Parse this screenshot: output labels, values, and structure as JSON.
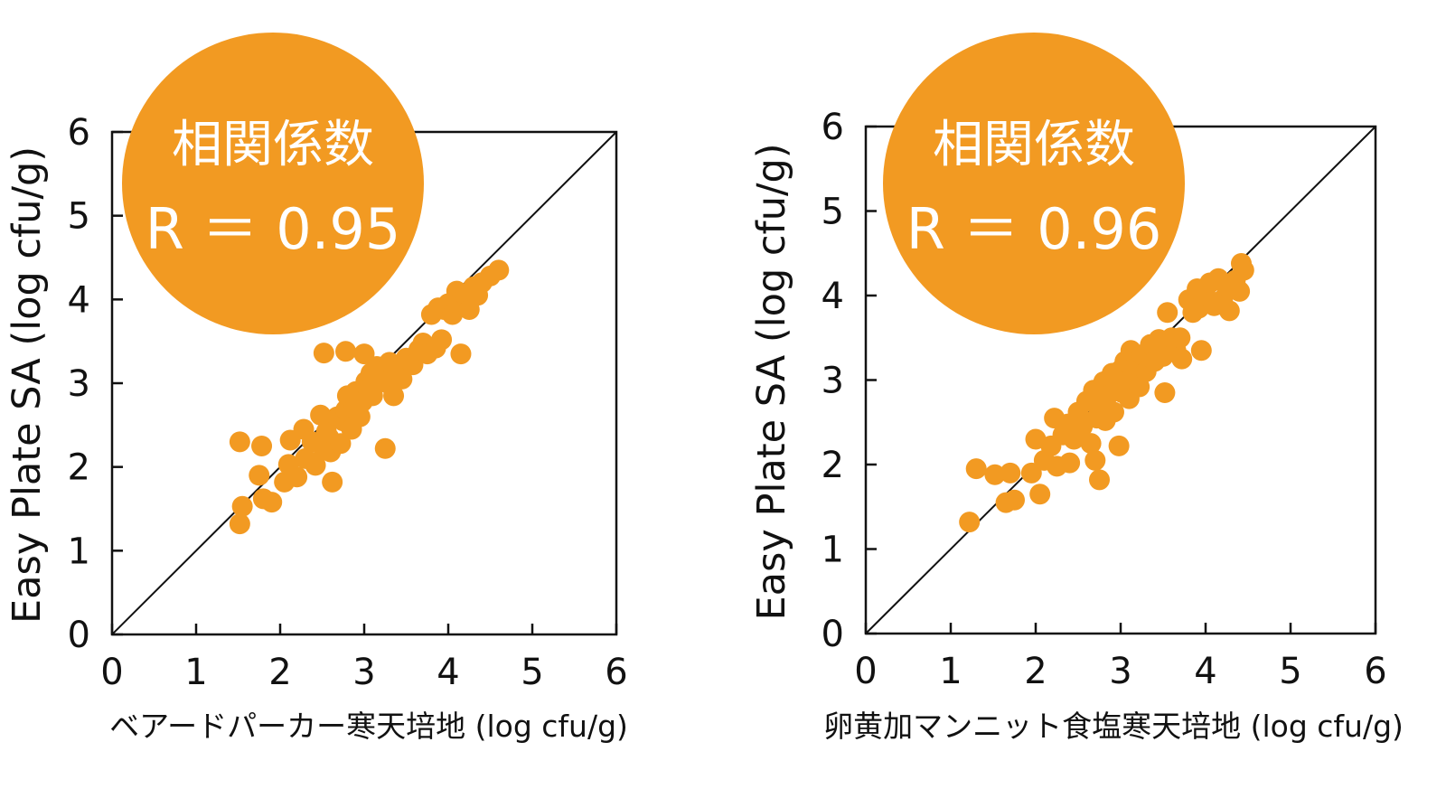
{
  "colors": {
    "accent": "#F29A22",
    "axis": "#111111",
    "badge_text": "#ffffff"
  },
  "chart_data": [
    {
      "type": "scatter",
      "title": "",
      "xlabel": "ベアードパーカー寒天培地 (log cfu/g)",
      "ylabel": "Easy Plate SA (log cfu/g)",
      "xlim": [
        0,
        6
      ],
      "ylim": [
        0,
        6
      ],
      "xticks": [
        "0",
        "1",
        "2",
        "3",
        "4",
        "5",
        "6"
      ],
      "yticks": [
        "0",
        "1",
        "2",
        "3",
        "4",
        "5",
        "6"
      ],
      "reference_line": "y = x",
      "grid": false,
      "badge": {
        "line1": "相関係数",
        "line2": "R ＝ 0.95"
      },
      "points": [
        [
          1.52,
          1.32
        ],
        [
          1.55,
          1.53
        ],
        [
          1.52,
          2.3
        ],
        [
          1.78,
          2.25
        ],
        [
          1.75,
          1.9
        ],
        [
          1.8,
          1.62
        ],
        [
          1.9,
          1.58
        ],
        [
          2.05,
          1.82
        ],
        [
          2.1,
          2.03
        ],
        [
          2.12,
          2.32
        ],
        [
          2.2,
          1.88
        ],
        [
          2.28,
          2.45
        ],
        [
          2.3,
          2.1
        ],
        [
          2.38,
          2.3
        ],
        [
          2.42,
          2.02
        ],
        [
          2.48,
          2.62
        ],
        [
          2.52,
          2.2
        ],
        [
          2.55,
          2.42
        ],
        [
          2.58,
          2.35
        ],
        [
          2.6,
          2.18
        ],
        [
          2.62,
          1.82
        ],
        [
          2.68,
          2.6
        ],
        [
          2.72,
          2.28
        ],
        [
          2.75,
          2.55
        ],
        [
          2.78,
          2.68
        ],
        [
          2.8,
          2.85
        ],
        [
          2.85,
          2.45
        ],
        [
          2.88,
          2.7
        ],
        [
          2.9,
          2.9
        ],
        [
          2.95,
          2.6
        ],
        [
          2.98,
          2.78
        ],
        [
          3.02,
          3.02
        ],
        [
          3.05,
          2.92
        ],
        [
          3.08,
          3.12
        ],
        [
          3.1,
          2.85
        ],
        [
          3.15,
          3.2
        ],
        [
          3.18,
          3.05
        ],
        [
          3.22,
          3.15
        ],
        [
          3.25,
          2.22
        ],
        [
          3.28,
          3.0
        ],
        [
          3.3,
          3.25
        ],
        [
          3.35,
          2.85
        ],
        [
          3.4,
          3.15
        ],
        [
          3.45,
          3.05
        ],
        [
          3.5,
          3.3
        ],
        [
          3.58,
          3.22
        ],
        [
          3.65,
          3.4
        ],
        [
          3.7,
          3.48
        ],
        [
          3.75,
          3.35
        ],
        [
          3.8,
          3.82
        ],
        [
          3.85,
          3.42
        ],
        [
          3.88,
          3.9
        ],
        [
          3.92,
          3.52
        ],
        [
          3.95,
          3.88
        ],
        [
          4.0,
          3.95
        ],
        [
          4.05,
          3.82
        ],
        [
          4.1,
          4.1
        ],
        [
          4.12,
          3.95
        ],
        [
          4.15,
          3.35
        ],
        [
          4.2,
          4.05
        ],
        [
          4.25,
          3.88
        ],
        [
          4.3,
          4.15
        ],
        [
          4.35,
          4.05
        ],
        [
          4.4,
          4.2
        ],
        [
          4.5,
          4.28
        ],
        [
          4.6,
          4.35
        ],
        [
          2.52,
          3.36
        ],
        [
          2.78,
          3.38
        ],
        [
          3.0,
          3.35
        ]
      ]
    },
    {
      "type": "scatter",
      "title": "",
      "xlabel": "卵黄加マンニット食塩寒天培地 (log cfu/g)",
      "ylabel": "Easy Plate SA (log cfu/g)",
      "xlim": [
        0,
        6
      ],
      "ylim": [
        0,
        6
      ],
      "xticks": [
        "0",
        "1",
        "2",
        "3",
        "4",
        "5",
        "6"
      ],
      "yticks": [
        "0",
        "1",
        "2",
        "3",
        "4",
        "5",
        "6"
      ],
      "reference_line": "y = x",
      "grid": false,
      "badge": {
        "line1": "相関係数",
        "line2": "R ＝ 0.96"
      },
      "points": [
        [
          1.22,
          1.32
        ],
        [
          1.3,
          1.95
        ],
        [
          1.52,
          1.88
        ],
        [
          1.65,
          1.55
        ],
        [
          1.7,
          1.9
        ],
        [
          1.75,
          1.58
        ],
        [
          1.95,
          1.9
        ],
        [
          2.0,
          2.3
        ],
        [
          2.05,
          1.65
        ],
        [
          2.1,
          2.05
        ],
        [
          2.18,
          2.22
        ],
        [
          2.22,
          2.55
        ],
        [
          2.25,
          1.98
        ],
        [
          2.32,
          2.35
        ],
        [
          2.38,
          2.48
        ],
        [
          2.4,
          2.02
        ],
        [
          2.45,
          2.3
        ],
        [
          2.5,
          2.62
        ],
        [
          2.55,
          2.45
        ],
        [
          2.6,
          2.75
        ],
        [
          2.65,
          2.25
        ],
        [
          2.68,
          2.88
        ],
        [
          2.7,
          2.05
        ],
        [
          2.72,
          2.55
        ],
        [
          2.75,
          1.82
        ],
        [
          2.78,
          2.7
        ],
        [
          2.8,
          2.98
        ],
        [
          2.82,
          2.52
        ],
        [
          2.85,
          2.82
        ],
        [
          2.9,
          3.08
        ],
        [
          2.92,
          2.62
        ],
        [
          2.95,
          2.95
        ],
        [
          2.98,
          2.22
        ],
        [
          3.0,
          3.12
        ],
        [
          3.02,
          2.85
        ],
        [
          3.05,
          3.22
        ],
        [
          3.08,
          2.98
        ],
        [
          3.1,
          2.78
        ],
        [
          3.12,
          3.35
        ],
        [
          3.15,
          3.05
        ],
        [
          3.18,
          3.18
        ],
        [
          3.22,
          2.92
        ],
        [
          3.25,
          3.3
        ],
        [
          3.3,
          3.1
        ],
        [
          3.35,
          3.42
        ],
        [
          3.4,
          3.22
        ],
        [
          3.45,
          3.48
        ],
        [
          3.5,
          3.28
        ],
        [
          3.52,
          2.85
        ],
        [
          3.55,
          3.8
        ],
        [
          3.65,
          3.35
        ],
        [
          3.7,
          3.5
        ],
        [
          3.72,
          3.25
        ],
        [
          3.8,
          3.95
        ],
        [
          3.85,
          3.8
        ],
        [
          3.9,
          4.08
        ],
        [
          3.92,
          3.85
        ],
        [
          3.95,
          3.35
        ],
        [
          4.0,
          4.0
        ],
        [
          4.05,
          4.15
        ],
        [
          4.1,
          3.88
        ],
        [
          4.15,
          4.2
        ],
        [
          4.2,
          3.95
        ],
        [
          4.25,
          4.1
        ],
        [
          4.28,
          3.82
        ],
        [
          4.35,
          4.18
        ],
        [
          4.4,
          4.05
        ],
        [
          4.45,
          4.3
        ],
        [
          4.42,
          4.38
        ],
        [
          3.6,
          3.5
        ]
      ]
    }
  ]
}
